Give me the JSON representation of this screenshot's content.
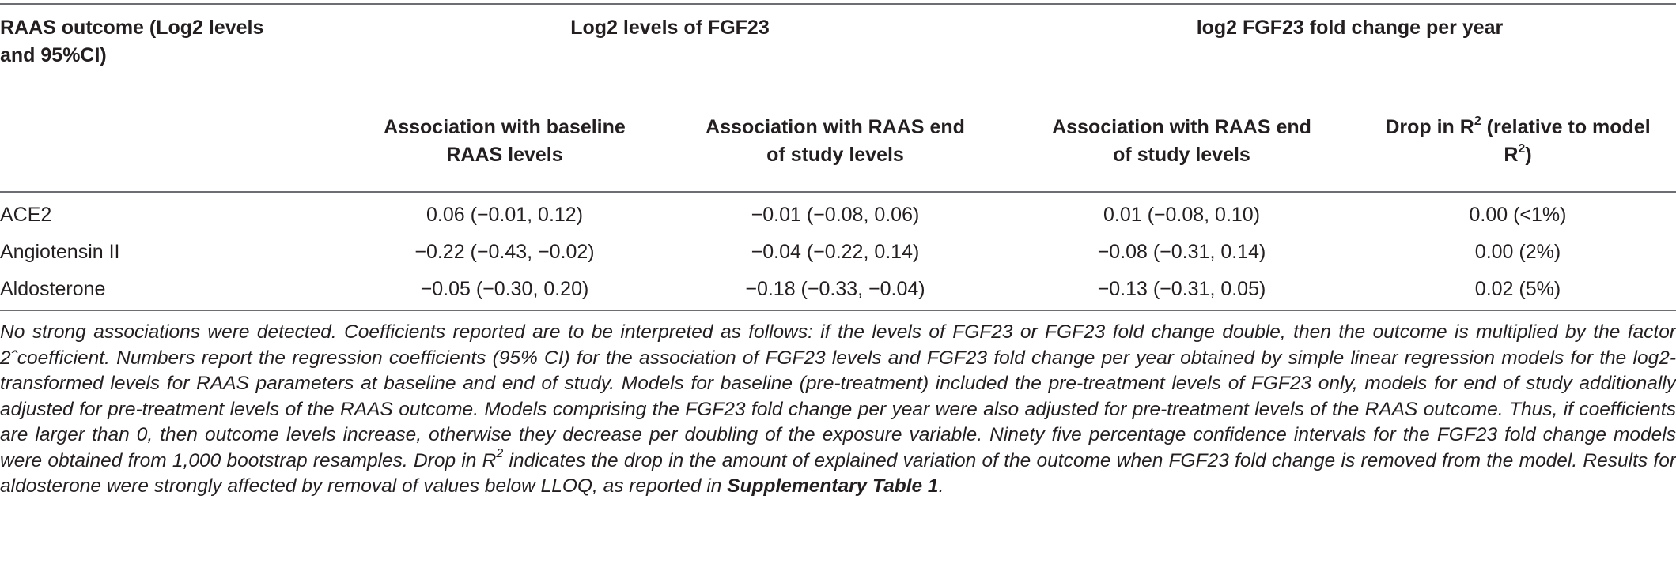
{
  "header": {
    "outcome_line1": "RAAS outcome (Log2 levels",
    "outcome_line2": "and 95%CI)",
    "group1": "Log2 levels of FGF23",
    "group2": "log2 FGF23 fold change per year",
    "col1_line1": "Association with baseline",
    "col1_line2": "RAAS levels",
    "col2_line1": "Association with RAAS end",
    "col2_line2": "of study levels",
    "col3_line1": "Association with RAAS end",
    "col3_line2": "of study levels",
    "col4_line1_pre": "Drop in R",
    "col4_line1_sup": "2",
    "col4_line1_post": " (relative to model",
    "col4_line2_pre": "R",
    "col4_line2_sup": "2",
    "col4_line2_post": ")"
  },
  "rows": [
    {
      "label": "ACE2",
      "c1": "0.06 (−0.01, 0.12)",
      "c2": "−0.01 (−0.08, 0.06)",
      "c3": "0.01 (−0.08, 0.10)",
      "c4": "0.00 (<1%)"
    },
    {
      "label": "Angiotensin II",
      "c1": "−0.22 (−0.43, −0.02)",
      "c2": "−0.04 (−0.22, 0.14)",
      "c3": "−0.08 (−0.31, 0.14)",
      "c4": "0.00 (2%)"
    },
    {
      "label": "Aldosterone",
      "c1": "−0.05 (−0.30, 0.20)",
      "c2": "−0.18 (−0.33, −0.04)",
      "c3": "−0.13 (−0.31, 0.05)",
      "c4": "0.02 (5%)"
    }
  ],
  "footnote": {
    "text_a": "No strong associations were detected. Coefficients reported are to be interpreted as follows: if the levels of FGF23 or FGF23 fold change double, then the outcome is multiplied by the factor 2ˆcoefficient. Numbers report the regression coefficients (95% CI) for the association of FGF23 levels and FGF23 fold change per year obtained by simple linear regression models for the log2-transformed levels for RAAS parameters at baseline and end of study. Models for baseline (pre-treatment) included the pre-treatment levels of FGF23 only, models for end of study additionally adjusted for pre-treatment levels of the RAAS outcome. Models comprising the FGF23 fold change per year were also adjusted for pre-treatment levels of the RAAS outcome. Thus, if coefficients are larger than 0, then outcome levels increase, otherwise they decrease per doubling of the exposure variable. Ninety five percentage confidence intervals for the FGF23 fold change models were obtained from 1,000 bootstrap resamples. Drop in R",
    "sup": "2",
    "text_b": " indicates the drop in the amount of explained variation of the outcome when FGF23 fold change is removed from the model. Results for aldosterone were strongly affected by removal of values below LLOQ, as reported in ",
    "link": "Supplementary Table 1",
    "end": "."
  }
}
